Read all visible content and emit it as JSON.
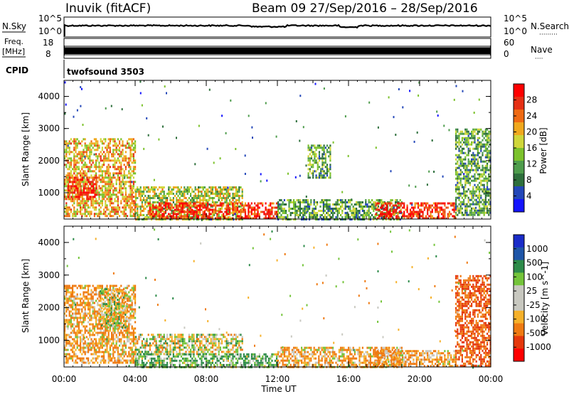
{
  "header": {
    "site": "Inuvik (fitACF)",
    "beam_range": "Beam 09  27/Sep/2016 – 28/Sep/2016"
  },
  "strips": {
    "nsky": {
      "left_label": "N.Sky",
      "left_ticks": [
        "10^5",
        "10^0"
      ],
      "right_ticks": [
        "10^5",
        "10^0"
      ],
      "right_label": "N.Search",
      "right_dots": "·········"
    },
    "freq": {
      "left_label_1": "Freq.",
      "left_label_2": "[MHz]",
      "left_ticks": [
        "18",
        "8"
      ],
      "right_ticks": [
        "60",
        "0"
      ],
      "right_label": "Nave",
      "right_dots": "····"
    },
    "cpid": {
      "label": "CPID",
      "program": "twofsound 3503"
    }
  },
  "colors": {
    "power_scale": [
      "#1414ff",
      "#2347b8",
      "#2e6f3c",
      "#4e9c4c",
      "#7cc22c",
      "#cfd63a",
      "#f0a81e",
      "#ef6a13",
      "#e63015",
      "#ff0000"
    ],
    "velocity_scale": [
      "#ff0000",
      "#e5380c",
      "#ef7a12",
      "#f6b12a",
      "#c8c8c0",
      "#c8c8c0",
      "#74c43a",
      "#2e8b4a",
      "#1f56a8",
      "#1a2cc8"
    ]
  },
  "chart_data": [
    {
      "type": "heatmap",
      "panel": "power",
      "xlabel": "",
      "ylabel": "Slant Range [km]",
      "yticks": [
        "1000",
        "2000",
        "3000",
        "4000"
      ],
      "colorbar_label": "Power [dB]",
      "colorbar_ticks": [
        "4",
        "8",
        "12",
        "16",
        "20",
        "24",
        "28"
      ],
      "colorbar_range": [
        0,
        32
      ],
      "ylim": [
        180,
        4500
      ],
      "xlim_hours": [
        0,
        24
      ],
      "echo_regions": [
        {
          "t": [
            0.0,
            4.0
          ],
          "r": [
            300,
            2700
          ],
          "dominant_db": 20
        },
        {
          "t": [
            0.2,
            1.8
          ],
          "r": [
            800,
            1500
          ],
          "dominant_db": 28
        },
        {
          "t": [
            4.0,
            10.0
          ],
          "r": [
            200,
            1200
          ],
          "dominant_db": 16
        },
        {
          "t": [
            4.7,
            12.0
          ],
          "r": [
            200,
            700
          ],
          "dominant_db": 28
        },
        {
          "t": [
            12.0,
            19.0
          ],
          "r": [
            200,
            800
          ],
          "dominant_db": 12
        },
        {
          "t": [
            13.7,
            15.0
          ],
          "r": [
            1500,
            2500
          ],
          "dominant_db": 12
        },
        {
          "t": [
            17.5,
            22.0
          ],
          "r": [
            200,
            700
          ],
          "dominant_db": 28
        },
        {
          "t": [
            22.0,
            24.0
          ],
          "r": [
            300,
            3000
          ],
          "dominant_db": 12
        }
      ]
    },
    {
      "type": "heatmap",
      "panel": "velocity",
      "xlabel": "Time UT",
      "ylabel": "Slant Range [km]",
      "xticks": [
        "00:00",
        "04:00",
        "08:00",
        "12:00",
        "16:00",
        "20:00",
        "00:00"
      ],
      "yticks": [
        "1000",
        "2000",
        "3000",
        "4000"
      ],
      "colorbar_label": "Velocity [m s^-1]",
      "colorbar_ticks": [
        "1000",
        "500",
        "100",
        "25",
        "-25",
        "-100",
        "-500",
        "-1000"
      ],
      "ylim": [
        180,
        4500
      ],
      "xlim_hours": [
        0,
        24
      ],
      "echo_regions": [
        {
          "t": [
            0.0,
            4.0
          ],
          "r": [
            300,
            2700
          ],
          "dominant_ms": -100
        },
        {
          "t": [
            2.0,
            3.5
          ],
          "r": [
            1400,
            2600
          ],
          "dominant_ms": 0
        },
        {
          "t": [
            4.0,
            10.0
          ],
          "r": [
            600,
            1200
          ],
          "dominant_ms": 0
        },
        {
          "t": [
            4.0,
            12.0
          ],
          "r": [
            200,
            600
          ],
          "dominant_ms": 100
        },
        {
          "t": [
            12.0,
            19.0
          ],
          "r": [
            200,
            800
          ],
          "dominant_ms": -100
        },
        {
          "t": [
            17.5,
            22.0
          ],
          "r": [
            200,
            700
          ],
          "dominant_ms": -100
        },
        {
          "t": [
            22.0,
            24.0
          ],
          "r": [
            200,
            3000
          ],
          "dominant_ms": -500
        }
      ]
    }
  ]
}
